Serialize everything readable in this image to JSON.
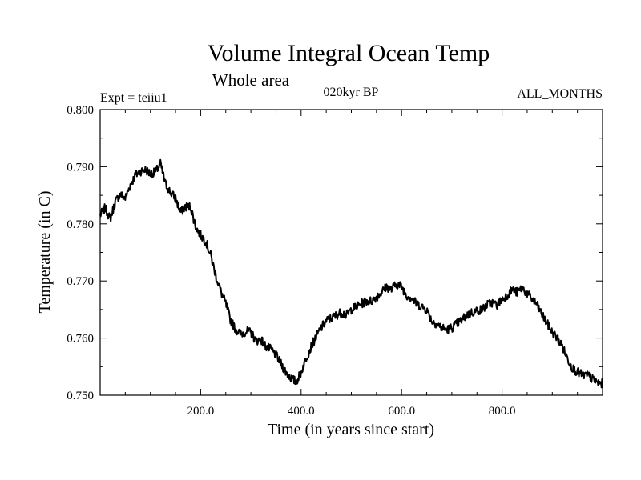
{
  "header": {
    "title": "Volume Integral Ocean Temp",
    "subtitle": "Whole area",
    "left_note": "Expt = teiiu1",
    "center_note": "020kyr BP",
    "right_note": "ALL_MONTHS"
  },
  "chart_data": {
    "type": "line",
    "title": "Volume Integral Ocean Temp",
    "subtitle": "Whole area",
    "xlabel": "Time (in years since start)",
    "ylabel": "Temperature (in C)",
    "xlim": [
      0,
      1000
    ],
    "ylim": [
      0.75,
      0.8
    ],
    "x_ticks": [
      200,
      400,
      600,
      800
    ],
    "x_tick_labels": [
      "200.0",
      "400.0",
      "600.0",
      "800.0"
    ],
    "y_ticks": [
      0.75,
      0.76,
      0.77,
      0.78,
      0.79,
      0.8
    ],
    "y_tick_labels": [
      "0.750",
      "0.760",
      "0.770",
      "0.780",
      "0.790",
      "0.800"
    ],
    "grid": false,
    "series": [
      {
        "color": "#000000",
        "x": [
          0,
          10,
          20,
          30,
          40,
          50,
          60,
          70,
          80,
          90,
          100,
          110,
          120,
          130,
          140,
          150,
          160,
          170,
          180,
          190,
          200,
          210,
          220,
          230,
          240,
          250,
          260,
          270,
          280,
          290,
          300,
          310,
          320,
          330,
          340,
          350,
          360,
          370,
          380,
          390,
          400,
          410,
          420,
          430,
          440,
          450,
          460,
          470,
          480,
          490,
          500,
          510,
          520,
          530,
          540,
          550,
          560,
          570,
          580,
          590,
          600,
          610,
          620,
          630,
          640,
          650,
          660,
          670,
          680,
          690,
          700,
          710,
          720,
          730,
          740,
          750,
          760,
          770,
          780,
          790,
          800,
          810,
          820,
          830,
          840,
          850,
          860,
          870,
          880,
          890,
          900,
          910,
          920,
          930,
          940,
          950,
          960,
          970,
          980,
          990,
          1000
        ],
        "y": [
          0.7815,
          0.7828,
          0.7808,
          0.7838,
          0.7852,
          0.7845,
          0.7868,
          0.7885,
          0.7892,
          0.7895,
          0.7888,
          0.789,
          0.7905,
          0.787,
          0.7855,
          0.7845,
          0.782,
          0.783,
          0.783,
          0.7795,
          0.778,
          0.777,
          0.7745,
          0.771,
          0.7682,
          0.766,
          0.763,
          0.7615,
          0.7607,
          0.7612,
          0.761,
          0.7595,
          0.7598,
          0.7585,
          0.758,
          0.757,
          0.7555,
          0.754,
          0.753,
          0.7523,
          0.754,
          0.7565,
          0.7585,
          0.7603,
          0.7618,
          0.763,
          0.7635,
          0.764,
          0.7645,
          0.764,
          0.765,
          0.7655,
          0.766,
          0.7665,
          0.7665,
          0.7672,
          0.768,
          0.769,
          0.7685,
          0.7695,
          0.769,
          0.7675,
          0.767,
          0.766,
          0.7655,
          0.765,
          0.763,
          0.7625,
          0.7618,
          0.7615,
          0.7618,
          0.7625,
          0.7632,
          0.764,
          0.7645,
          0.7648,
          0.765,
          0.7658,
          0.7662,
          0.7658,
          0.7668,
          0.7675,
          0.7685,
          0.768,
          0.7688,
          0.7678,
          0.7668,
          0.7658,
          0.764,
          0.7625,
          0.761,
          0.76,
          0.7585,
          0.7565,
          0.7548,
          0.754,
          0.7535,
          0.7535,
          0.7528,
          0.7522,
          0.752
        ]
      }
    ]
  }
}
